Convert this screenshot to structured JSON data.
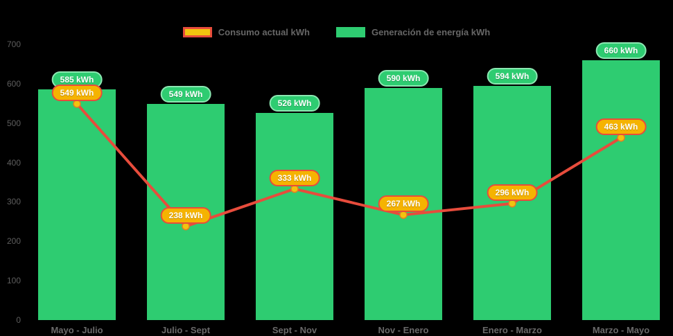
{
  "chart_data": {
    "type": "bar",
    "subtype": "bar-with-line-overlay",
    "title": "",
    "xlabel": "",
    "ylabel": "",
    "ylim": [
      0,
      700
    ],
    "yticks": [
      0,
      100,
      200,
      300,
      400,
      500,
      600,
      700
    ],
    "grid": false,
    "legend_position": "top-center",
    "categories": [
      "Mayo - Julio",
      "Julio - Sept",
      "Sept - Nov",
      "Nov - Enero",
      "Enero - Marzo",
      "Marzo - Mayo"
    ],
    "series": [
      {
        "name": "Generación de energía kWh",
        "type": "bar",
        "color": "#2ecc71",
        "values": [
          585,
          549,
          526,
          590,
          594,
          660
        ],
        "labels": [
          "585 kWh",
          "549 kWh",
          "526 kWh",
          "590 kWh",
          "594 kWh",
          "660 kWh"
        ]
      },
      {
        "name": "Consumo actual kWh",
        "type": "line",
        "color": "#e74c3c",
        "point_color": "#f1c40f",
        "values": [
          549,
          238,
          333,
          267,
          296,
          463
        ],
        "labels": [
          "549 kWh",
          "238 kWh",
          "333 kWh",
          "267 kWh",
          "296 kWh",
          "463 kWh"
        ]
      }
    ]
  },
  "legend": {
    "consumo_label": "Consumo actual kWh",
    "generacion_label": "Generación de energía kWh"
  },
  "colors": {
    "background": "#000000",
    "bar": "#2ecc71",
    "line": "#e74c3c",
    "point_fill": "#f1c40f",
    "point_stroke": "#e67e22",
    "green_pill_bg": "#2ecc71",
    "green_pill_border": "#8ce8b2",
    "orange_pill_bg": "#f5b301",
    "orange_pill_border": "#e74c3c",
    "axis_text": "#666666"
  }
}
